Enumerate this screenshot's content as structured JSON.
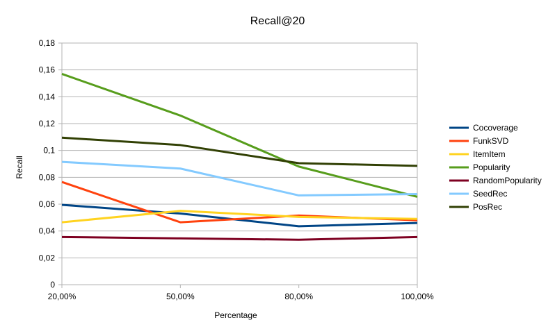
{
  "chart_data": {
    "type": "line",
    "title": "Recall@20",
    "xlabel": "Percentage",
    "ylabel": "Recall",
    "categories": [
      "20,00%",
      "50,00%",
      "80,00%",
      "100,00%"
    ],
    "ylim": [
      0,
      0.18
    ],
    "yticks": [
      0,
      0.02,
      0.04,
      0.06,
      0.08,
      0.1,
      0.12,
      0.14,
      0.16,
      0.18
    ],
    "ytick_labels": [
      "0",
      "0,02",
      "0,04",
      "0,06",
      "0,08",
      "0,1",
      "0,12",
      "0,14",
      "0,16",
      "0,18"
    ],
    "grid": true,
    "legend_position": "right",
    "series": [
      {
        "name": "Cocoverage",
        "color": "#004586",
        "values": [
          0.0595,
          0.053,
          0.0435,
          0.046
        ]
      },
      {
        "name": "FunkSVD",
        "color": "#ff420e",
        "values": [
          0.0765,
          0.0465,
          0.0515,
          0.048
        ]
      },
      {
        "name": "ItemItem",
        "color": "#ffd320",
        "values": [
          0.0465,
          0.055,
          0.0505,
          0.049
        ]
      },
      {
        "name": "Popularity",
        "color": "#579d1c",
        "values": [
          0.157,
          0.126,
          0.088,
          0.0655
        ]
      },
      {
        "name": "RandomPopularity",
        "color": "#7e0021",
        "values": [
          0.0355,
          0.0345,
          0.0335,
          0.0355
        ]
      },
      {
        "name": "SeedRec",
        "color": "#83caff",
        "values": [
          0.0915,
          0.0865,
          0.0665,
          0.0675
        ]
      },
      {
        "name": "PosRec",
        "color": "#314004",
        "values": [
          0.1095,
          0.104,
          0.0905,
          0.0885
        ]
      }
    ]
  }
}
